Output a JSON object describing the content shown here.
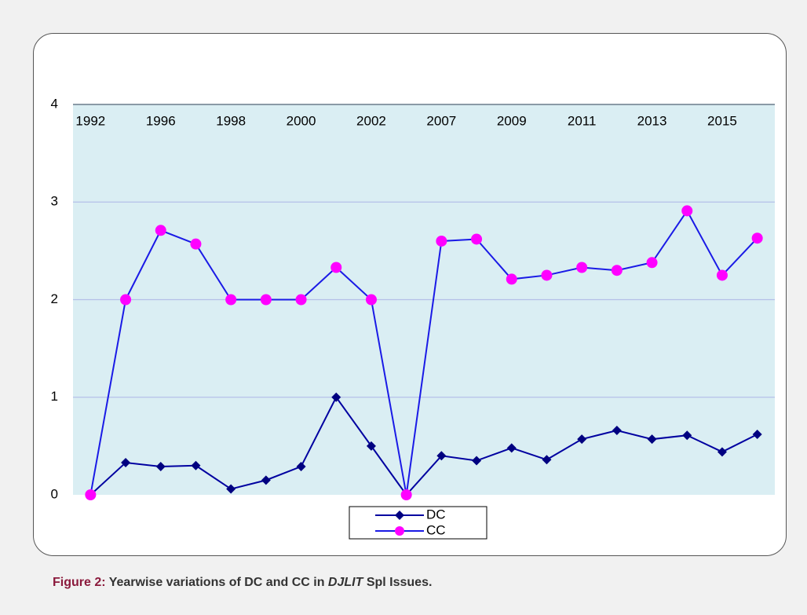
{
  "chart_data": {
    "type": "line",
    "categories": [
      "1992",
      null,
      "1996",
      null,
      "1998",
      null,
      "2000",
      null,
      "2002",
      null,
      "2007",
      null,
      "2009",
      null,
      "2011",
      null,
      "2013",
      null,
      "2015",
      null
    ],
    "series": [
      {
        "name": "DC",
        "color": "#000080",
        "line_color": "#0000a0",
        "marker": "diamond",
        "marker_color": "#000080",
        "values": [
          0,
          0.33,
          0.29,
          0.3,
          0.06,
          0.15,
          0.29,
          1.0,
          0.5,
          0,
          0.4,
          0.35,
          0.48,
          0.36,
          0.57,
          0.66,
          0.57,
          0.61,
          0.44,
          0.62
        ]
      },
      {
        "name": "CC",
        "color": "#ff00ff",
        "line_color": "#1a1ae6",
        "marker": "circle",
        "marker_color": "#ff00ff",
        "values": [
          0,
          2,
          2.71,
          2.57,
          2,
          2,
          2,
          2.33,
          2,
          0,
          2.6,
          2.62,
          2.21,
          2.25,
          2.33,
          2.3,
          2.38,
          2.91,
          2.25,
          2.63
        ]
      }
    ],
    "ylim": [
      0,
      4
    ],
    "yticks": [
      0,
      1,
      2,
      3,
      4
    ],
    "grid": true,
    "legend": "bottom"
  },
  "caption": {
    "label": "Figure 2:",
    "text": "Yearwise variations of DC and CC in",
    "emphasis": "DJLIT",
    "rest": "Spl Issues."
  }
}
